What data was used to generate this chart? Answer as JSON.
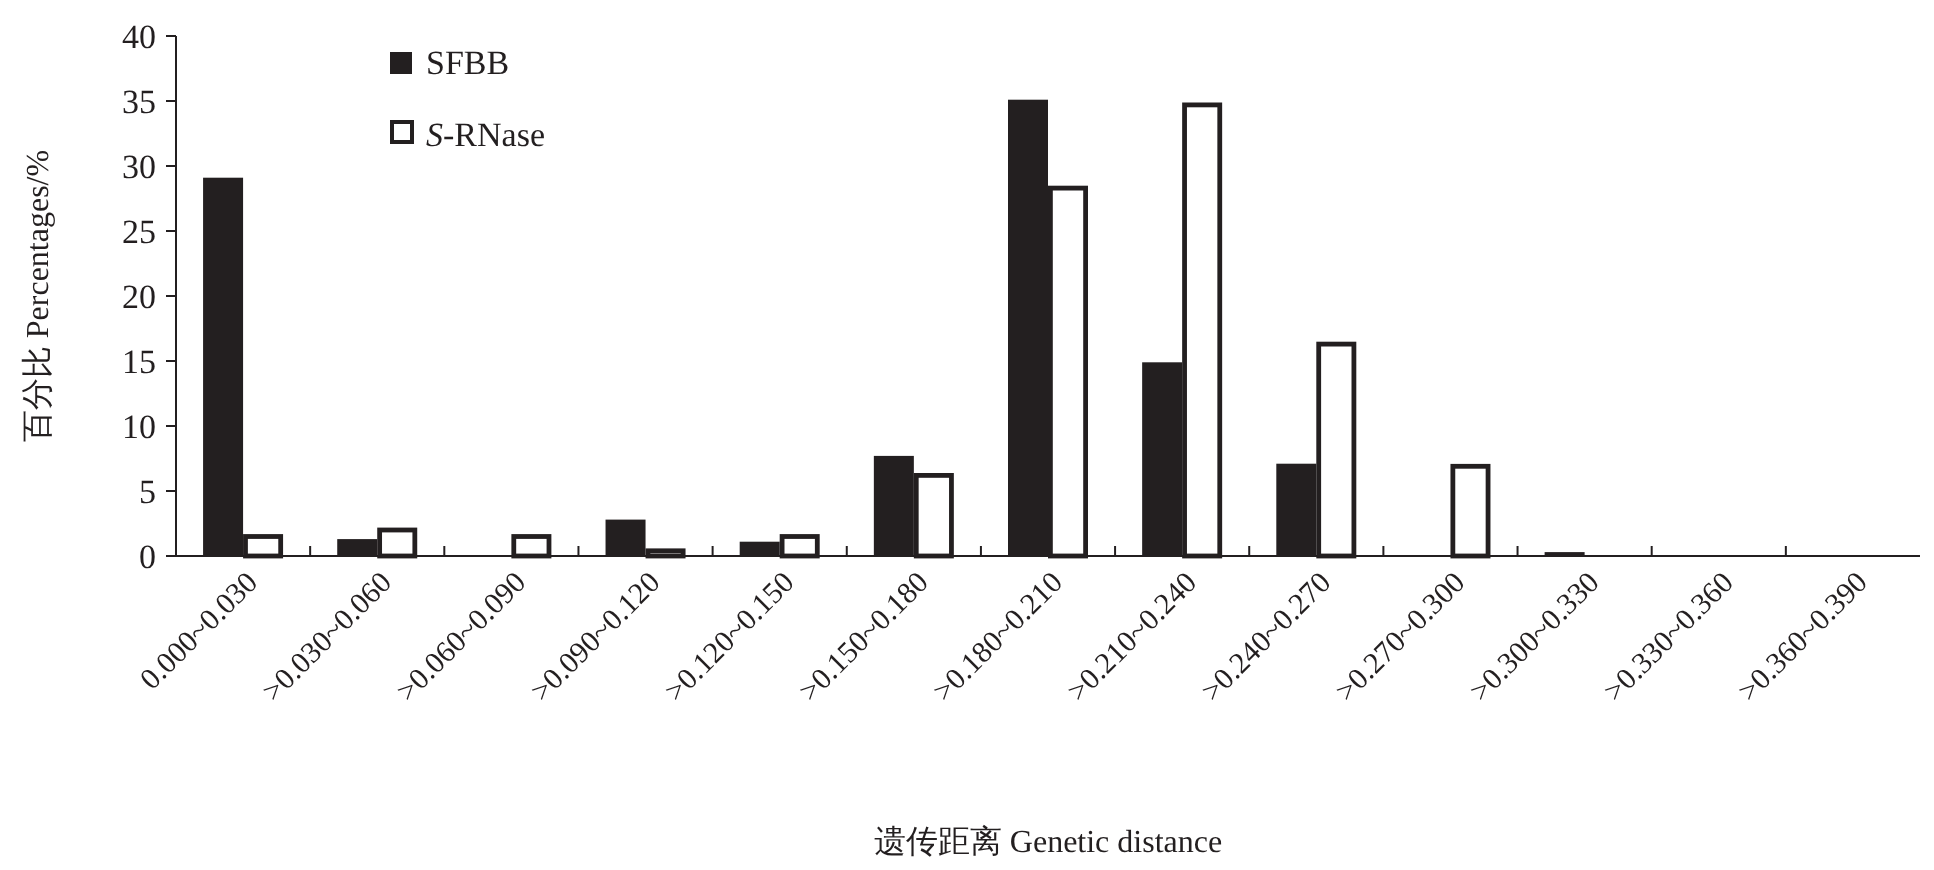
{
  "chart_data": {
    "type": "bar",
    "xlabel": "遗传距离 Genetic distance",
    "ylabel": "百分比 Percentages/%",
    "categories": [
      "0.000~0.030",
      ">0.030~0.060",
      ">0.060~0.090",
      ">0.090~0.120",
      ">0.120~0.150",
      ">0.150~0.180",
      ">0.180~0.210",
      ">0.210~0.240",
      ">0.240~0.270",
      ">0.270~0.300",
      ">0.300~0.330",
      ">0.330~0.360",
      ">0.360~0.390"
    ],
    "series": [
      {
        "name": "SFBB",
        "color": "#231f20",
        "values": [
          29.1,
          1.3,
          0,
          2.8,
          1.1,
          7.7,
          35.1,
          14.9,
          7.1,
          0,
          0.3,
          0,
          0
        ]
      },
      {
        "name": "*S*-RNase",
        "color": "#ffffff",
        "values": [
          1.5,
          2.0,
          1.5,
          0.4,
          1.5,
          6.2,
          28.3,
          34.7,
          16.3,
          6.9,
          0,
          0,
          0
        ]
      }
    ],
    "ylim": [
      0,
      40
    ],
    "yticks": [
      0,
      5,
      10,
      15,
      20,
      25,
      30,
      35,
      40
    ],
    "legend": "top left",
    "grid": false
  }
}
